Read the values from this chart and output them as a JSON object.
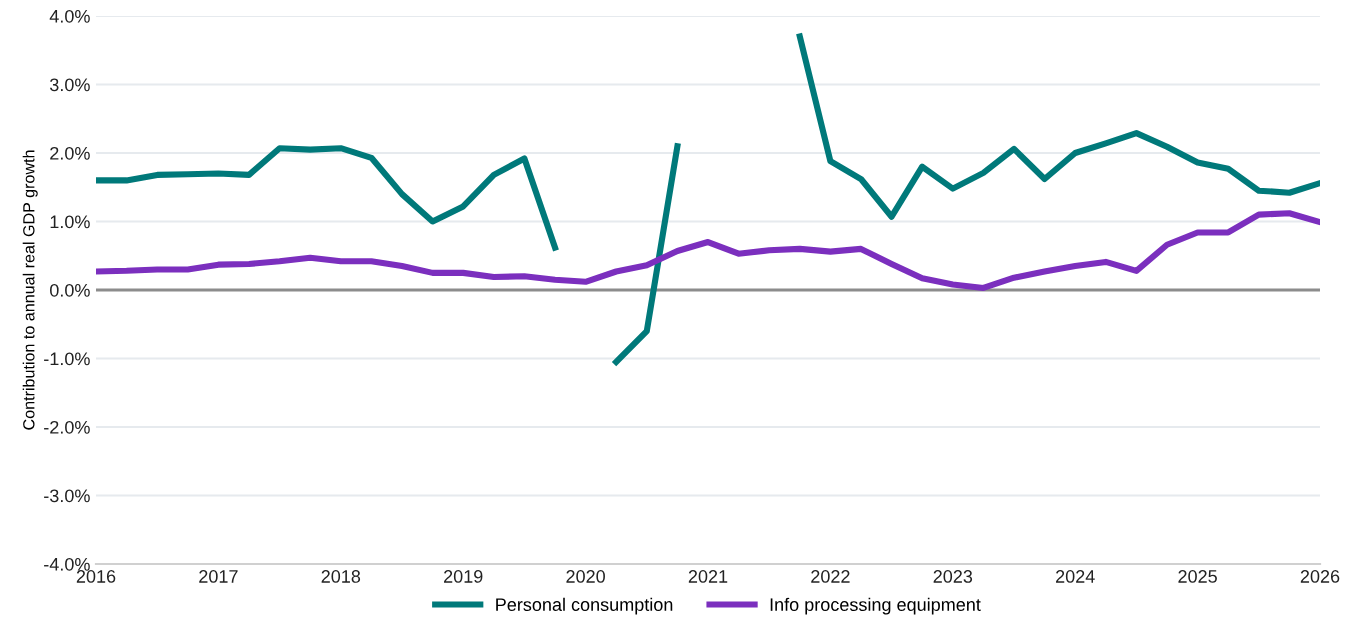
{
  "chart_data": {
    "type": "line",
    "ylabel": "Contribution to annual real GDP growth",
    "x": [
      2016,
      2016.25,
      2016.5,
      2016.75,
      2017,
      2017.25,
      2017.5,
      2017.75,
      2018,
      2018.25,
      2018.5,
      2018.75,
      2019,
      2019.25,
      2019.5,
      2019.75,
      2020,
      2020.25,
      2020.5,
      2020.75,
      2021,
      2021.25,
      2021.5,
      2021.75,
      2022,
      2022.25,
      2022.5,
      2022.75,
      2023,
      2023.25,
      2023.5,
      2023.75,
      2024,
      2024.25,
      2024.5,
      2024.75,
      2025,
      2025.25,
      2025.5,
      2025.75,
      2026
    ],
    "series": [
      {
        "name": "Personal consumption",
        "color": "#00797a",
        "values": [
          1.6,
          1.6,
          1.68,
          1.69,
          1.7,
          1.68,
          2.07,
          2.05,
          2.07,
          1.93,
          1.4,
          1.0,
          1.22,
          1.68,
          1.92,
          0.62,
          null,
          -1.05,
          -0.6,
          2.1,
          null,
          null,
          null,
          3.7,
          1.88,
          1.62,
          1.07,
          1.8,
          1.48,
          1.71,
          2.06,
          1.62,
          2.0,
          2.14,
          2.29,
          2.09,
          1.86,
          1.77,
          1.45,
          1.42,
          1.56
        ]
      },
      {
        "name": "Info processing equipment",
        "color": "#7b2fbe",
        "values": [
          0.27,
          0.28,
          0.3,
          0.3,
          0.37,
          0.38,
          0.42,
          0.47,
          0.42,
          0.42,
          0.35,
          0.25,
          0.25,
          0.19,
          0.2,
          0.15,
          0.12,
          0.27,
          0.36,
          0.57,
          0.7,
          0.53,
          0.58,
          0.6,
          0.56,
          0.6,
          0.38,
          0.17,
          0.08,
          0.03,
          0.18,
          0.27,
          0.35,
          0.41,
          0.28,
          0.66,
          0.84,
          0.84,
          1.1,
          1.12,
          0.99
        ]
      }
    ],
    "xlim": [
      2016,
      2026
    ],
    "xticks": [
      2016,
      2017,
      2018,
      2019,
      2020,
      2021,
      2022,
      2023,
      2024,
      2025,
      2026
    ],
    "ylim": [
      -4,
      4
    ],
    "yticks": [
      {
        "value": -4,
        "label": "-4.0%"
      },
      {
        "value": -3,
        "label": "-3.0%"
      },
      {
        "value": -2,
        "label": "-2.0%"
      },
      {
        "value": -1,
        "label": "-1.0%"
      },
      {
        "value": 0,
        "label": "0.0%"
      },
      {
        "value": 1,
        "label": "1.0%"
      },
      {
        "value": 2,
        "label": "2.0%"
      },
      {
        "value": 3,
        "label": "3.0%"
      },
      {
        "value": 4,
        "label": "4.0%"
      }
    ],
    "ref_lines": [
      {
        "axis": "y",
        "value": 0,
        "color": "#8c8c8c"
      }
    ],
    "grid": "y",
    "legend": "bottom",
    "line_style": "solid"
  }
}
